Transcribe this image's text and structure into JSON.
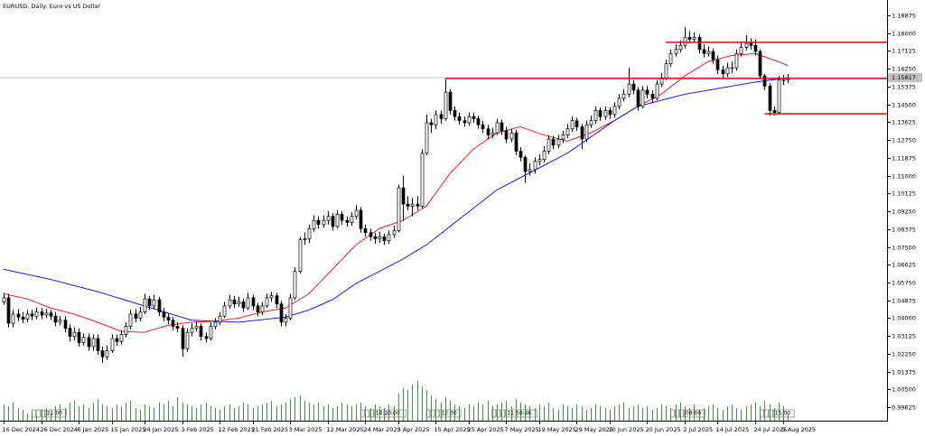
{
  "chart_data": {
    "type": "candlestick",
    "title": "EURUSD, Daily:  Euro vs US Dollar",
    "up_color": "#ffffff",
    "down_color": "#000000",
    "wick_color": "#000000",
    "xlim": [
      -0.77,
      188.08
    ],
    "ylim": [
      0.98964,
      1.19629
    ],
    "yticks": [
      0.99625,
      {
        "value": 1.005,
        "label": "1.00500"
      },
      1.01375,
      {
        "value": 1.0225,
        "label": "1.02250"
      },
      1.03125,
      {
        "value": 1.04,
        "label": "1.04000"
      },
      1.04875,
      {
        "value": 1.0575,
        "label": "1.05750"
      },
      1.06625,
      {
        "value": 1.075,
        "label": "1.07500"
      },
      1.08375,
      {
        "value": 1.0925,
        "label": "1.09250"
      },
      1.10125,
      {
        "value": 1.11,
        "label": "1.11000"
      },
      1.11875,
      {
        "value": 1.1275,
        "label": "1.12750"
      },
      1.13625,
      {
        "value": 1.145,
        "label": "1.14500"
      },
      1.15375,
      {
        "value": 1.1625,
        "label": "1.16250"
      },
      1.17125,
      {
        "value": 1.18,
        "label": "1.18000"
      },
      1.18875
    ],
    "xticks": [
      {
        "value": 0,
        "label": "16 Dec 2024"
      },
      {
        "value": 8,
        "label": "26 Dec 2024"
      },
      {
        "value": 16,
        "label": "6 Jan 2025"
      },
      {
        "value": 23,
        "label": "15 Jan 2025"
      },
      {
        "value": 30,
        "label": "24 Jan 2025"
      },
      {
        "value": 38,
        "label": "3 Feb 2025"
      },
      {
        "value": 46,
        "label": "12 Feb 2025"
      },
      {
        "value": 53,
        "label": "21 Feb 2025"
      },
      {
        "value": 61,
        "label": "3 Mar 2025"
      },
      {
        "value": 69,
        "label": "12 Mar 2025"
      },
      {
        "value": 77,
        "label": "24 Mar 2025"
      },
      {
        "value": 84,
        "label": "3 Apr 2025"
      },
      {
        "value": 92,
        "label": "15 Apr 2025"
      },
      {
        "value": 99,
        "label": "25 Apr 2025"
      },
      {
        "value": 107,
        "label": "7 May 2025"
      },
      {
        "value": 114,
        "label": "19 May 2025"
      },
      {
        "value": 122,
        "label": "29 May 2025"
      },
      {
        "value": 129,
        "label": "10 Jun 2025"
      },
      {
        "value": 137,
        "label": "20 Jun 2025"
      },
      {
        "value": 145,
        "label": "2 Jul 2025"
      },
      {
        "value": 152,
        "label": "14 Jul 2025"
      },
      {
        "value": 160,
        "label": "24 Jul 2025"
      },
      {
        "value": 166,
        "label": "5 Aug 2025"
      }
    ],
    "open": [
      1.048,
      1.05,
      1.0375,
      1.042,
      1.0405,
      1.0395,
      1.042,
      1.041,
      1.043,
      1.0415,
      1.0425,
      1.041,
      1.038,
      1.039,
      1.035,
      1.031,
      1.033,
      1.028,
      1.0305,
      1.026,
      1.03,
      1.024,
      1.021,
      1.024,
      1.03,
      1.0285,
      1.032,
      1.036,
      1.042,
      1.04,
      1.043,
      1.0495,
      1.046,
      1.049,
      1.043,
      1.0405,
      1.039,
      1.036,
      1.035,
      1.025,
      1.033,
      1.035,
      1.036,
      1.031,
      1.03,
      1.036,
      1.038,
      1.041,
      1.046,
      1.049,
      1.047,
      1.048,
      1.045,
      1.05,
      1.046,
      1.043,
      1.046,
      1.05,
      1.051,
      1.047,
      1.038,
      1.04,
      1.05,
      1.063,
      1.0785,
      1.079,
      1.084,
      1.088,
      1.086,
      1.088,
      1.09,
      1.085,
      1.091,
      1.088,
      1.087,
      1.09,
      1.093,
      1.084,
      1.082,
      1.08,
      1.079,
      1.08,
      1.078,
      1.081,
      1.083,
      1.104,
      1.096,
      1.095,
      1.096,
      1.095,
      1.121,
      1.136,
      1.135,
      1.14,
      1.138,
      1.151,
      1.142,
      1.139,
      1.137,
      1.136,
      1.139,
      1.138,
      1.135,
      1.133,
      1.13,
      1.131,
      1.136,
      1.132,
      1.128,
      1.131,
      1.122,
      1.119,
      1.112,
      1.113,
      1.117,
      1.118,
      1.122,
      1.128,
      1.125,
      1.128,
      1.13,
      1.133,
      1.137,
      1.134,
      1.128,
      1.135,
      1.137,
      1.142,
      1.139,
      1.142,
      1.14,
      1.144,
      1.148,
      1.15,
      1.155,
      1.152,
      1.144,
      1.152,
      1.15,
      1.148,
      1.155,
      1.158,
      1.165,
      1.17,
      1.172,
      1.174,
      1.178,
      1.177,
      1.178,
      1.172,
      1.17,
      1.171,
      1.167,
      1.162,
      1.16,
      1.163,
      1.163,
      1.17,
      1.173,
      1.175,
      1.174,
      1.171,
      1.159,
      1.154,
      1.142,
      1.141,
      1.157,
      1.157
    ],
    "high": [
      1.0525,
      1.052,
      1.044,
      1.0445,
      1.043,
      1.044,
      1.044,
      1.045,
      1.045,
      1.0445,
      1.044,
      1.043,
      1.041,
      1.041,
      1.037,
      1.0355,
      1.035,
      1.0325,
      1.0325,
      1.032,
      1.032,
      1.026,
      1.0265,
      1.032,
      1.032,
      1.034,
      1.038,
      1.044,
      1.0445,
      1.0455,
      1.052,
      1.051,
      1.0515,
      1.0505,
      1.045,
      1.0425,
      1.0405,
      1.038,
      1.0365,
      1.035,
      1.0375,
      1.0385,
      1.0375,
      1.033,
      1.038,
      1.04,
      1.043,
      1.048,
      1.0515,
      1.051,
      1.0505,
      1.0495,
      1.0525,
      1.0515,
      1.0475,
      1.048,
      1.052,
      1.053,
      1.0525,
      1.0485,
      1.042,
      1.052,
      1.065,
      1.08,
      1.082,
      1.086,
      1.0905,
      1.09,
      1.0905,
      1.0925,
      1.0915,
      1.093,
      1.0925,
      1.09,
      1.092,
      1.0955,
      1.0945,
      1.086,
      1.084,
      1.082,
      1.0825,
      1.0815,
      1.083,
      1.0855,
      1.1055,
      1.11,
      1.1,
      1.099,
      1.1,
      1.123,
      1.14,
      1.138,
      1.142,
      1.142,
      1.1573,
      1.1525,
      1.144,
      1.141,
      1.139,
      1.141,
      1.141,
      1.1395,
      1.137,
      1.135,
      1.1335,
      1.138,
      1.1375,
      1.134,
      1.133,
      1.1325,
      1.124,
      1.12,
      1.116,
      1.119,
      1.1205,
      1.1245,
      1.13,
      1.1295,
      1.13,
      1.132,
      1.1355,
      1.139,
      1.1385,
      1.1355,
      1.137,
      1.1395,
      1.144,
      1.1435,
      1.144,
      1.1435,
      1.146,
      1.15,
      1.1525,
      1.163,
      1.157,
      1.1535,
      1.154,
      1.154,
      1.152,
      1.157,
      1.1605,
      1.167,
      1.172,
      1.1745,
      1.1765,
      1.183,
      1.181,
      1.1805,
      1.1795,
      1.1745,
      1.1735,
      1.1725,
      1.169,
      1.164,
      1.1655,
      1.166,
      1.172,
      1.1755,
      1.179,
      1.1775,
      1.177,
      1.172,
      1.16,
      1.1555,
      1.144,
      1.159,
      1.1595,
      1.16
    ],
    "low": [
      1.0465,
      1.0355,
      1.0355,
      1.0385,
      1.0375,
      1.038,
      1.039,
      1.0395,
      1.0395,
      1.04,
      1.039,
      1.036,
      1.0365,
      1.033,
      1.0285,
      1.029,
      1.026,
      1.0265,
      1.024,
      1.024,
      1.022,
      1.018,
      1.0195,
      1.023,
      1.0265,
      1.027,
      1.0305,
      1.0345,
      1.038,
      1.0385,
      1.042,
      1.044,
      1.0445,
      1.041,
      1.0385,
      1.037,
      1.034,
      1.033,
      1.021,
      1.0235,
      1.031,
      1.0335,
      1.029,
      1.028,
      1.029,
      1.0345,
      1.0365,
      1.04,
      1.0445,
      1.045,
      1.0455,
      1.043,
      1.044,
      1.044,
      1.041,
      1.0415,
      1.045,
      1.048,
      1.045,
      1.036,
      1.036,
      1.039,
      1.049,
      1.062,
      1.076,
      1.077,
      1.0825,
      1.084,
      1.0845,
      1.086,
      1.083,
      1.084,
      1.086,
      1.085,
      1.0855,
      1.0885,
      1.082,
      1.08,
      1.078,
      1.0765,
      1.077,
      1.076,
      1.0765,
      1.0795,
      1.082,
      1.088,
      1.093,
      1.09,
      1.093,
      1.094,
      1.12,
      1.131,
      1.133,
      1.1355,
      1.137,
      1.14,
      1.137,
      1.135,
      1.134,
      1.1345,
      1.136,
      1.133,
      1.131,
      1.128,
      1.1285,
      1.13,
      1.13,
      1.126,
      1.1265,
      1.12,
      1.117,
      1.1065,
      1.11,
      1.111,
      1.115,
      1.1165,
      1.1205,
      1.123,
      1.1235,
      1.126,
      1.1285,
      1.1315,
      1.132,
      1.123,
      1.1265,
      1.1335,
      1.1355,
      1.137,
      1.1375,
      1.138,
      1.1385,
      1.1425,
      1.1465,
      1.1485,
      1.15,
      1.142,
      1.143,
      1.148,
      1.146,
      1.147,
      1.1535,
      1.157,
      1.1635,
      1.1685,
      1.1705,
      1.1725,
      1.175,
      1.1755,
      1.17,
      1.168,
      1.1685,
      1.165,
      1.16,
      1.1575,
      1.1585,
      1.1605,
      1.1615,
      1.1685,
      1.1715,
      1.172,
      1.169,
      1.1575,
      1.152,
      1.1395,
      1.1395,
      1.14,
      1.1545,
      1.1555
    ],
    "close": [
      1.05,
      1.0375,
      1.042,
      1.0405,
      1.0395,
      1.042,
      1.041,
      1.043,
      1.0415,
      1.0425,
      1.041,
      1.038,
      1.039,
      1.035,
      1.031,
      1.033,
      1.028,
      1.0305,
      1.026,
      1.03,
      1.024,
      1.021,
      1.024,
      1.03,
      1.0285,
      1.032,
      1.036,
      1.042,
      1.04,
      1.043,
      1.0495,
      1.046,
      1.049,
      1.043,
      1.0405,
      1.039,
      1.036,
      1.035,
      1.025,
      1.033,
      1.035,
      1.036,
      1.031,
      1.03,
      1.036,
      1.038,
      1.041,
      1.046,
      1.049,
      1.047,
      1.048,
      1.045,
      1.05,
      1.046,
      1.043,
      1.046,
      1.05,
      1.051,
      1.047,
      1.038,
      1.04,
      1.05,
      1.063,
      1.0785,
      1.079,
      1.084,
      1.088,
      1.086,
      1.088,
      1.09,
      1.085,
      1.091,
      1.088,
      1.087,
      1.09,
      1.093,
      1.084,
      1.082,
      1.08,
      1.079,
      1.08,
      1.078,
      1.081,
      1.083,
      1.104,
      1.096,
      1.095,
      1.096,
      1.095,
      1.121,
      1.136,
      1.135,
      1.14,
      1.138,
      1.151,
      1.142,
      1.139,
      1.137,
      1.136,
      1.139,
      1.138,
      1.135,
      1.133,
      1.13,
      1.131,
      1.136,
      1.132,
      1.128,
      1.131,
      1.122,
      1.119,
      1.112,
      1.113,
      1.117,
      1.118,
      1.122,
      1.128,
      1.125,
      1.128,
      1.13,
      1.133,
      1.137,
      1.134,
      1.128,
      1.135,
      1.137,
      1.142,
      1.139,
      1.142,
      1.14,
      1.144,
      1.148,
      1.15,
      1.155,
      1.152,
      1.144,
      1.152,
      1.15,
      1.148,
      1.155,
      1.158,
      1.165,
      1.17,
      1.172,
      1.174,
      1.178,
      1.177,
      1.178,
      1.172,
      1.17,
      1.171,
      1.167,
      1.162,
      1.16,
      1.163,
      1.163,
      1.17,
      1.173,
      1.175,
      1.174,
      1.171,
      1.159,
      1.154,
      1.142,
      1.141,
      1.157,
      1.157,
      1.158
    ],
    "ma_fast": {
      "color": "#ff0000",
      "x": [
        0,
        5,
        10,
        15,
        20,
        25,
        30,
        35,
        40,
        45,
        50,
        55,
        60,
        65,
        70,
        75,
        80,
        85,
        90,
        95,
        100,
        105,
        110,
        115,
        120,
        125,
        130,
        135,
        140,
        145,
        150,
        155,
        160,
        165,
        167
      ],
      "values": [
        1.052,
        1.0495,
        1.045,
        1.042,
        1.038,
        1.0335,
        1.033,
        1.0365,
        1.038,
        1.0385,
        1.04,
        1.043,
        1.045,
        1.052,
        1.064,
        1.076,
        1.084,
        1.088,
        1.095,
        1.111,
        1.123,
        1.131,
        1.134,
        1.13,
        1.127,
        1.131,
        1.137,
        1.144,
        1.15,
        1.159,
        1.166,
        1.169,
        1.17,
        1.166,
        1.164
      ]
    },
    "ma_slow": {
      "color": "#0000ff",
      "x": [
        0,
        10,
        20,
        30,
        40,
        50,
        60,
        65,
        70,
        75,
        80,
        85,
        90,
        95,
        100,
        105,
        110,
        115,
        120,
        125,
        130,
        135,
        140,
        145,
        150,
        155,
        160,
        165,
        167
      ],
      "values": [
        1.064,
        1.059,
        1.053,
        1.046,
        1.039,
        1.038,
        1.0405,
        1.044,
        1.049,
        1.057,
        1.063,
        1.069,
        1.076,
        1.085,
        1.094,
        1.103,
        1.109,
        1.115,
        1.121,
        1.129,
        1.137,
        1.144,
        1.147,
        1.15,
        1.152,
        1.154,
        1.156,
        1.1575,
        1.158
      ]
    },
    "volume": {
      "color": "#3a9a3a",
      "lim": [
        0,
        100
      ],
      "values": [
        18,
        16,
        20,
        14,
        12,
        8,
        10,
        6,
        12,
        14,
        8,
        16,
        18,
        14,
        20,
        22,
        16,
        18,
        14,
        20,
        24,
        18,
        16,
        14,
        18,
        16,
        20,
        22,
        14,
        12,
        18,
        16,
        14,
        20,
        18,
        22,
        16,
        26,
        20,
        18,
        16,
        14,
        18,
        20,
        16,
        14,
        12,
        16,
        18,
        14,
        16,
        20,
        18,
        14,
        16,
        18,
        20,
        22,
        16,
        18,
        20,
        24,
        26,
        28,
        22,
        20,
        18,
        20,
        16,
        18,
        14,
        16,
        20,
        18,
        16,
        18,
        20,
        16,
        14,
        18,
        16,
        14,
        18,
        16,
        30,
        36,
        34,
        40,
        44,
        38,
        34,
        28,
        24,
        20,
        26,
        22,
        18,
        16,
        14,
        18,
        16,
        20,
        18,
        22,
        16,
        18,
        20,
        22,
        16,
        24,
        20,
        18,
        16,
        14,
        18,
        16,
        20,
        14,
        12,
        18,
        16,
        14,
        18,
        16,
        12,
        14,
        18,
        16,
        14,
        12,
        16,
        18,
        20,
        14,
        16,
        18,
        14,
        16,
        12,
        14,
        18,
        16,
        14,
        18,
        20,
        16,
        14,
        18,
        12,
        14,
        16,
        18,
        14,
        12,
        16,
        18,
        14,
        12,
        16,
        18,
        20,
        16,
        22,
        18,
        14,
        20,
        16,
        8
      ]
    },
    "levels": {
      "color": "#ff0000",
      "from": [
        141,
        94,
        162
      ],
      "values": [
        1.1755,
        1.1577,
        1.1404
      ]
    },
    "last_price": 1.15817,
    "events": [
      {
        "value": 6,
        "label": "21:00"
      },
      {
        "value": 76,
        "label": "14:20:00"
      },
      {
        "value": 90,
        "label": "12:30"
      },
      {
        "value": 104,
        "label": "11:50:46"
      },
      {
        "value": 142,
        "label": "09:00"
      },
      {
        "value": 161,
        "label": "15:00"
      }
    ]
  }
}
